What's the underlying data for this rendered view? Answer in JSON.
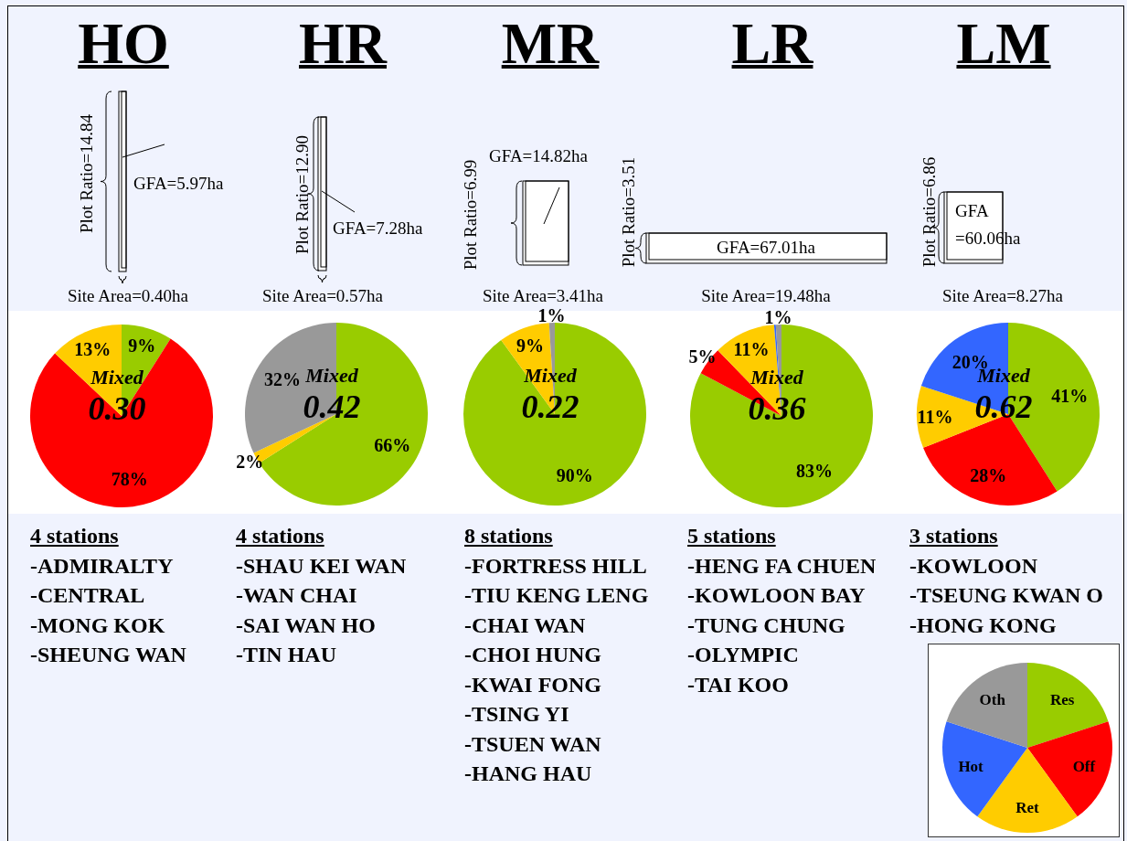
{
  "chart_data": [
    {
      "type": "pie",
      "title": "HO",
      "categories": [
        null,
        null,
        null
      ],
      "values": [
        9,
        78,
        13
      ],
      "colors": [
        "#99cc00",
        "#ff0000",
        "#ffcc00"
      ],
      "value_labels": [
        "9%",
        "78%",
        "13%"
      ],
      "annotations": [
        "Plot Ratio=14.84",
        "GFA=5.97ha",
        "Site Area=0.40ha",
        "Mixed",
        "0.30",
        "4 stations",
        "-ADMIRALTY",
        "-CENTRAL",
        "-MONG KOK",
        "-SHEUNG WAN"
      ]
    },
    {
      "type": "pie",
      "title": "HR",
      "categories": [
        null,
        null,
        null
      ],
      "values": [
        66,
        2,
        32
      ],
      "colors": [
        "#99cc00",
        "#ffcc00",
        "#999999"
      ],
      "value_labels": [
        "66%",
        "2%",
        "32%"
      ],
      "annotations": [
        "Plot Ratio=12.90",
        "GFA=7.28ha",
        "Site Area=0.57ha",
        "Mixed",
        "0.42",
        "4 stations",
        "-SHAU KEI WAN",
        "-WAN CHAI",
        "-SAI WAN HO",
        "-TIN HAU"
      ]
    },
    {
      "type": "pie",
      "title": "MR",
      "categories": [
        null,
        null,
        null
      ],
      "values": [
        90,
        9,
        1
      ],
      "colors": [
        "#99cc00",
        "#ffcc00",
        "#999999"
      ],
      "value_labels": [
        "90%",
        "9%",
        "1%"
      ],
      "annotations": [
        "Plot Ratio=6.99",
        "GFA=14.82ha",
        "Site Area=3.41ha",
        "Mixed",
        "0.22",
        "8 stations",
        "-FORTRESS HILL",
        "-TIU KENG LENG",
        "-CHAI WAN",
        "-CHOI HUNG",
        "-KWAI FONG",
        "-TSING YI",
        "-TSUEN WAN",
        "-HANG HAU"
      ]
    },
    {
      "type": "pie",
      "title": "LR",
      "categories": [
        null,
        null,
        null,
        null,
        null
      ],
      "values": [
        83,
        5,
        11,
        0.3,
        1
      ],
      "colors": [
        "#99cc00",
        "#ff0000",
        "#ffcc00",
        "#3366ff",
        "#999999"
      ],
      "value_labels": [
        "83%",
        "5%",
        "11%",
        null,
        "1%"
      ],
      "annotations": [
        "Plot Ratio=3.51",
        "GFA=67.01ha",
        "Site Area=19.48ha",
        "Mixed",
        "0.36",
        "5 stations",
        "-HENG FA CHUEN",
        "-KOWLOON BAY",
        "-TUNG CHUNG",
        "-OLYMPIC",
        "-TAI KOO"
      ]
    },
    {
      "type": "pie",
      "title": "LM",
      "categories": [
        null,
        null,
        null,
        null
      ],
      "values": [
        41,
        28,
        11,
        20
      ],
      "colors": [
        "#99cc00",
        "#ff0000",
        "#ffcc00",
        "#3366ff"
      ],
      "value_labels": [
        "41%",
        "28%",
        "11%",
        "20%"
      ],
      "annotations": [
        "Plot Ratio=6.86",
        "GFA =60.06ha",
        "Site Area=8.27ha",
        "Mixed",
        "0.62",
        "3 stations",
        "-KOWLOON",
        "-TSEUNG KWAN O",
        "-HONG KONG"
      ]
    },
    {
      "type": "pie",
      "categories": [
        "Res",
        "Off",
        "Ret",
        "Hot",
        "Oth"
      ],
      "values": [
        20,
        20,
        20,
        20,
        20
      ],
      "colors": [
        "#99cc00",
        "#ff0000",
        "#ffcc00",
        "#3366ff",
        "#999999"
      ]
    }
  ]
}
